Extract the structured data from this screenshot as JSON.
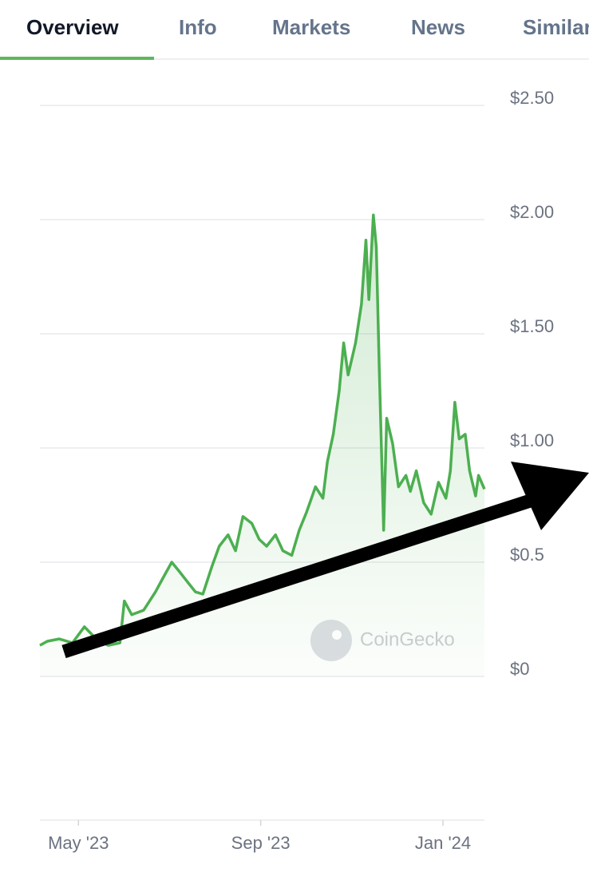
{
  "tabs": [
    "Overview",
    "Info",
    "Markets",
    "News",
    "Similar"
  ],
  "chart_data": {
    "type": "line",
    "watermark": "CoinGecko",
    "color": "#4caf50",
    "x": [
      0,
      5,
      13,
      22,
      30,
      38,
      46,
      54,
      57,
      62,
      70,
      78,
      83,
      89,
      94,
      100,
      105,
      110,
      116,
      121,
      127,
      132,
      137,
      143,
      148,
      153,
      159,
      164,
      170,
      175,
      180,
      186,
      191,
      194,
      198,
      202,
      205,
      208,
      213,
      217,
      220,
      222,
      225,
      227,
      229,
      232,
      234,
      238,
      242,
      247,
      250,
      254,
      259,
      264,
      269,
      274,
      277,
      280,
      283,
      287,
      290,
      294,
      296,
      300
    ],
    "values": [
      0.136,
      0.154,
      0.164,
      0.147,
      0.217,
      0.164,
      0.136,
      0.147,
      0.33,
      0.27,
      0.29,
      0.37,
      0.43,
      0.5,
      0.46,
      0.41,
      0.37,
      0.36,
      0.48,
      0.57,
      0.62,
      0.55,
      0.7,
      0.67,
      0.6,
      0.57,
      0.62,
      0.55,
      0.53,
      0.64,
      0.72,
      0.83,
      0.78,
      0.94,
      1.06,
      1.25,
      1.46,
      1.32,
      1.46,
      1.63,
      1.91,
      1.65,
      2.02,
      1.88,
      1.35,
      0.64,
      1.13,
      1.02,
      0.83,
      0.88,
      0.81,
      0.9,
      0.76,
      0.71,
      0.85,
      0.78,
      0.9,
      1.2,
      1.04,
      1.06,
      0.9,
      0.79,
      0.88,
      0.82
    ],
    "xlim": [
      0,
      300
    ],
    "xticks": [
      {
        "value": 26,
        "label": "May '23"
      },
      {
        "value": 149,
        "label": "Sep '23"
      },
      {
        "value": 272,
        "label": "Jan '24"
      }
    ],
    "ylim": [
      0,
      2.5
    ],
    "yticks": [
      {
        "value": 0,
        "label": "$0"
      },
      {
        "value": 0.5,
        "label": "$0.5"
      },
      {
        "value": 1,
        "label": "$1.00"
      },
      {
        "value": 1.5,
        "label": "$1.50"
      },
      {
        "value": 2,
        "label": "$2.00"
      },
      {
        "value": 2.5,
        "label": "$2.50"
      }
    ],
    "grid": true
  }
}
